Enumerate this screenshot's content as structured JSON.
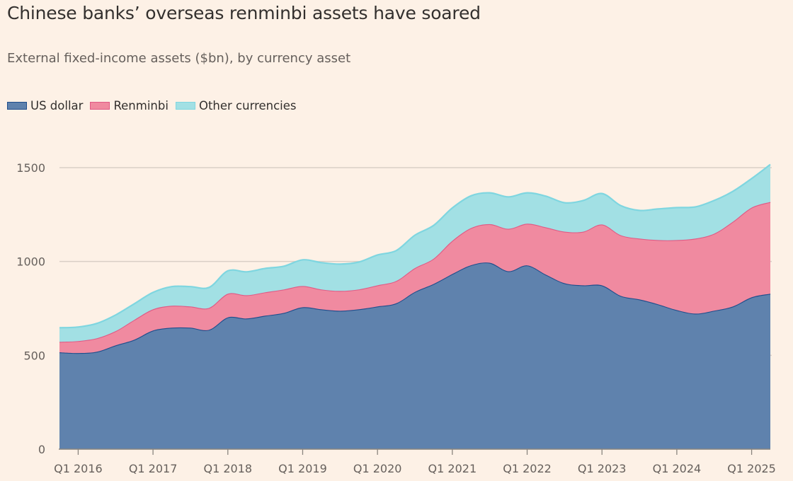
{
  "chart_data": {
    "type": "area",
    "stacked": true,
    "title": "Chinese banks’ overseas renminbi assets have soared",
    "subtitle": "External fixed-income assets ($bn), by currency asset",
    "xlabel": "",
    "ylabel": "",
    "ylim": [
      0,
      1500
    ],
    "yticks": [
      0,
      500,
      1000,
      1500
    ],
    "grid": true,
    "legend_position": "top-left",
    "x": [
      "Q4 2015",
      "Q1 2016",
      "Q2 2016",
      "Q3 2016",
      "Q4 2016",
      "Q1 2017",
      "Q2 2017",
      "Q3 2017",
      "Q4 2017",
      "Q1 2018",
      "Q2 2018",
      "Q3 2018",
      "Q4 2018",
      "Q1 2019",
      "Q2 2019",
      "Q3 2019",
      "Q4 2019",
      "Q1 2020",
      "Q2 2020",
      "Q3 2020",
      "Q4 2020",
      "Q1 2021",
      "Q2 2021",
      "Q3 2021",
      "Q4 2021",
      "Q1 2022",
      "Q2 2022",
      "Q3 2022",
      "Q4 2022",
      "Q1 2023",
      "Q2 2023",
      "Q3 2023",
      "Q4 2023",
      "Q1 2024",
      "Q2 2024",
      "Q3 2024",
      "Q4 2024",
      "Q1 2025",
      "Q2 2025"
    ],
    "xticks": [
      "Q1 2016",
      "Q1 2017",
      "Q1 2018",
      "Q1 2019",
      "Q1 2020",
      "Q1 2021",
      "Q1 2022",
      "Q1 2023",
      "Q1 2024",
      "Q1 2025"
    ],
    "series": [
      {
        "name": "US dollar",
        "fill": "#5f82ad",
        "stroke": "#1f4e8c",
        "swatch": "#1f4e8c",
        "values": [
          516,
          512,
          519,
          553,
          583,
          632,
          647,
          647,
          636,
          702,
          696,
          711,
          726,
          756,
          745,
          737,
          745,
          760,
          777,
          838,
          880,
          933,
          980,
          993,
          948,
          979,
          930,
          884,
          873,
          873,
          817,
          798,
          772,
          741,
          722,
          738,
          760,
          809,
          828
        ]
      },
      {
        "name": "Renminbi",
        "fill": "#f08aa0",
        "stroke": "#e05a85",
        "swatch": "#e05a85",
        "values": [
          56,
          64,
          72,
          76,
          106,
          113,
          117,
          113,
          117,
          126,
          124,
          125,
          125,
          113,
          106,
          106,
          106,
          113,
          119,
          127,
          135,
          177,
          198,
          206,
          226,
          222,
          252,
          275,
          286,
          324,
          323,
          324,
          342,
          373,
          400,
          410,
          452,
          478,
          489
        ]
      },
      {
        "name": "Other currencies",
        "fill": "#a2e0e4",
        "stroke": "#7fd6e0",
        "swatch": "#7fd6e0",
        "values": [
          75,
          75,
          79,
          86,
          86,
          90,
          102,
          106,
          109,
          122,
          125,
          127,
          124,
          140,
          143,
          143,
          146,
          162,
          162,
          175,
          177,
          175,
          172,
          167,
          170,
          165,
          166,
          154,
          166,
          165,
          158,
          150,
          166,
          173,
          169,
          177,
          162,
          155,
          200
        ]
      }
    ]
  }
}
